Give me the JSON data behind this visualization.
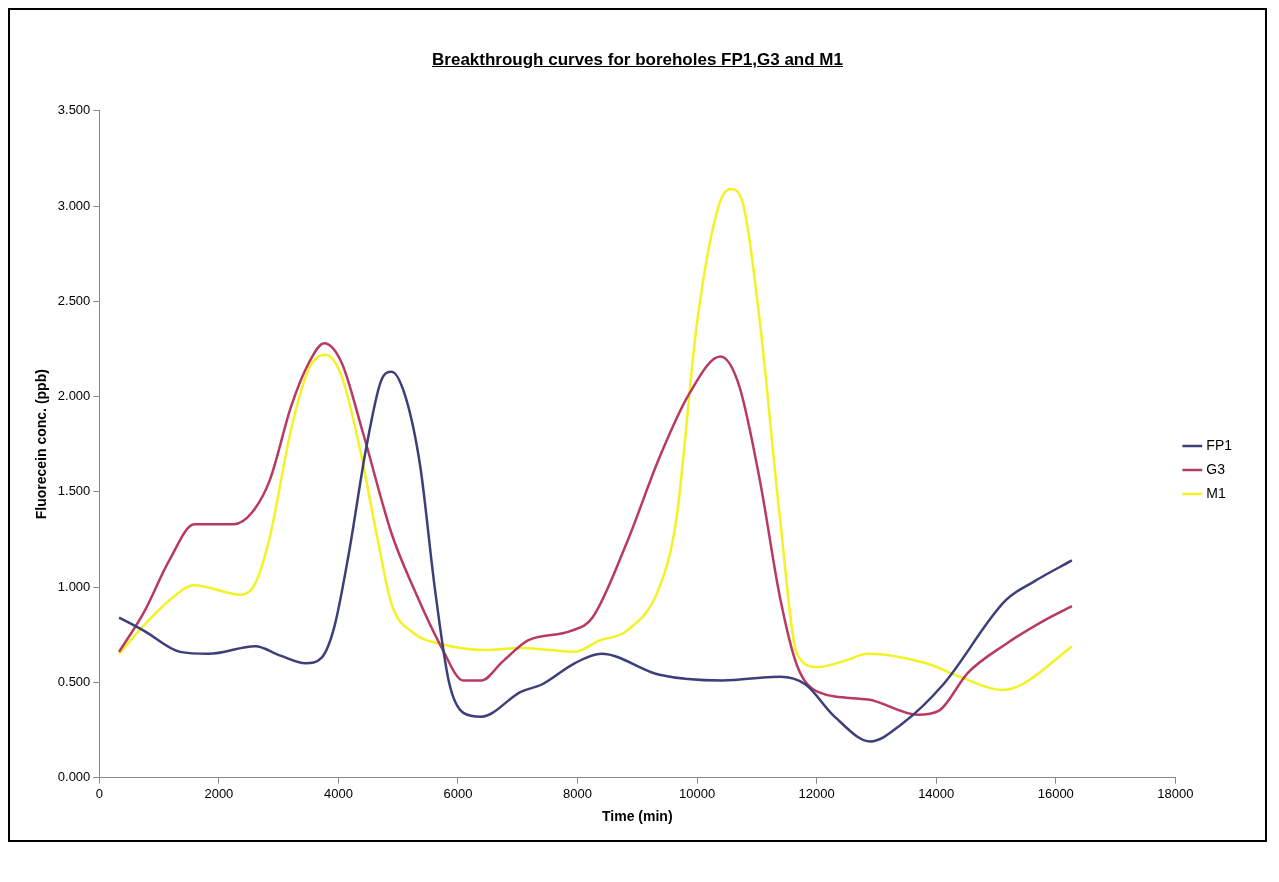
{
  "chart_data": {
    "type": "line",
    "title": "Breakthrough curves for boreholes FP1,G3 and M1",
    "xlabel": "Time (min)",
    "ylabel": "Fluorecein conc. (ppb)",
    "xlim": [
      0,
      18000
    ],
    "xticks": [
      0,
      2000,
      4000,
      6000,
      8000,
      10000,
      12000,
      14000,
      16000,
      18000
    ],
    "ylim": [
      0,
      3.5
    ],
    "yticks": [
      {
        "value": 0,
        "label": "0.000"
      },
      {
        "value": 0.5,
        "label": "0.500"
      },
      {
        "value": 1,
        "label": "1.000"
      },
      {
        "value": 1.5,
        "label": "1.500"
      },
      {
        "value": 2,
        "label": "2.000"
      },
      {
        "value": 2.5,
        "label": "2.500"
      },
      {
        "value": 3,
        "label": "3.000"
      },
      {
        "value": 3.5,
        "label": "3.500"
      }
    ],
    "legend": "right",
    "marker": "none",
    "series": [
      {
        "name": "FP1",
        "color": "#3c3f7a",
        "x": [
          330,
          750,
          1350,
          1830,
          2610,
          3030,
          3450,
          3720,
          3930,
          4170,
          4470,
          4710,
          4890,
          5130,
          5370,
          5610,
          5850,
          6090,
          6390,
          7050,
          7410,
          7950,
          8400,
          9370,
          10420,
          11390,
          11810,
          12300,
          12900,
          13420,
          14120,
          15160,
          15640,
          16270
        ],
        "values": [
          0.84,
          0.77,
          0.66,
          0.65,
          0.69,
          0.64,
          0.6,
          0.63,
          0.79,
          1.17,
          1.74,
          2.08,
          2.13,
          1.99,
          1.63,
          1.0,
          0.5,
          0.34,
          0.32,
          0.45,
          0.49,
          0.6,
          0.65,
          0.54,
          0.51,
          0.53,
          0.49,
          0.32,
          0.19,
          0.28,
          0.49,
          0.93,
          1.03,
          1.14
        ]
      },
      {
        "name": "G3",
        "color": "#b83a62",
        "x": [
          330,
          750,
          1170,
          1590,
          2250,
          2550,
          2850,
          3210,
          3510,
          3760,
          4050,
          4410,
          4890,
          5250,
          5730,
          6090,
          6390,
          6750,
          7170,
          7890,
          8250,
          8820,
          9370,
          9860,
          10390,
          10700,
          11050,
          11390,
          11670,
          12020,
          12860,
          13690,
          14040,
          14530,
          15160,
          15780,
          16270
        ],
        "values": [
          0.66,
          0.87,
          1.14,
          1.33,
          1.33,
          1.39,
          1.56,
          1.95,
          2.18,
          2.28,
          2.18,
          1.81,
          1.28,
          1.0,
          0.68,
          0.51,
          0.51,
          0.61,
          0.72,
          0.77,
          0.84,
          1.23,
          1.68,
          2.01,
          2.21,
          2.06,
          1.56,
          0.94,
          0.59,
          0.45,
          0.41,
          0.33,
          0.35,
          0.55,
          0.7,
          0.82,
          0.9
        ]
      },
      {
        "name": "M1",
        "color": "#f2f224",
        "x": [
          330,
          750,
          1170,
          1590,
          2370,
          2610,
          2850,
          3210,
          3510,
          3780,
          4050,
          4350,
          4650,
          4890,
          5250,
          5730,
          6450,
          7050,
          7530,
          7950,
          8370,
          8820,
          9370,
          9650,
          10000,
          10350,
          10560,
          10770,
          11050,
          11390,
          11670,
          12020,
          12440,
          12860,
          13830,
          14390,
          15090,
          15440,
          16270
        ],
        "values": [
          0.65,
          0.8,
          0.93,
          1.01,
          0.96,
          1.02,
          1.26,
          1.83,
          2.15,
          2.22,
          2.11,
          1.74,
          1.26,
          0.91,
          0.76,
          0.7,
          0.67,
          0.68,
          0.67,
          0.66,
          0.72,
          0.77,
          1.0,
          1.35,
          2.39,
          2.99,
          3.09,
          3.01,
          2.39,
          1.35,
          0.65,
          0.58,
          0.61,
          0.65,
          0.6,
          0.53,
          0.46,
          0.49,
          0.69
        ]
      }
    ]
  }
}
